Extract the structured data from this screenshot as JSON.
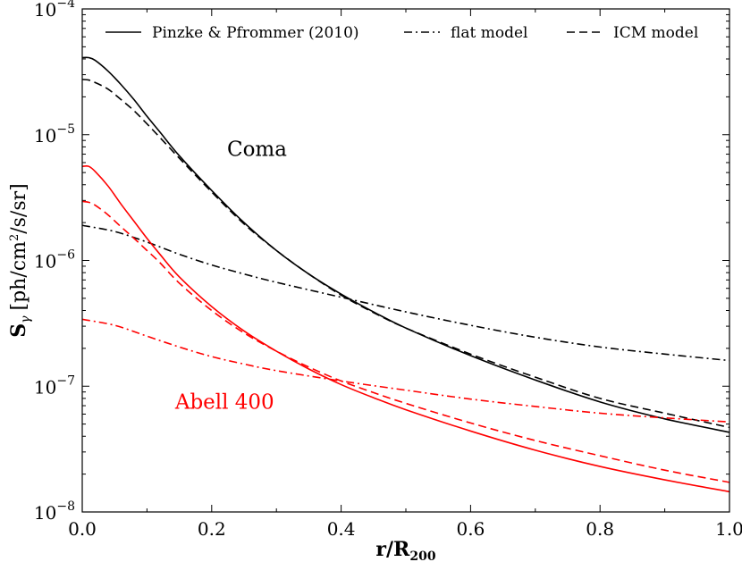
{
  "chart_data": {
    "type": "line",
    "title": "",
    "xlabel": "r/R",
    "xlabel_sub": "200",
    "ylabel": "S",
    "ylabel_sub": "γ",
    "ylabel_unit": "[ph/cm",
    "ylabel_unit_sup": "2",
    "ylabel_unit_tail": "/s/sr]",
    "xlim": [
      0.0,
      1.0
    ],
    "ylim_log10": [
      -8,
      -4
    ],
    "yscale": "log",
    "x_ticks": [
      {
        "v": 0.0,
        "label": "0.0"
      },
      {
        "v": 0.2,
        "label": "0.2"
      },
      {
        "v": 0.4,
        "label": "0.4"
      },
      {
        "v": 0.6,
        "label": "0.6"
      },
      {
        "v": 0.8,
        "label": "0.8"
      },
      {
        "v": 1.0,
        "label": "1.0"
      }
    ],
    "y_ticks": [
      {
        "e": -8,
        "base": "10",
        "exp": "−8"
      },
      {
        "e": -7,
        "base": "10",
        "exp": "−7"
      },
      {
        "e": -6,
        "base": "10",
        "exp": "−6"
      },
      {
        "e": -5,
        "base": "10",
        "exp": "−5"
      },
      {
        "e": -4,
        "base": "10",
        "exp": "−4"
      }
    ],
    "legend": {
      "position": "top",
      "entries": [
        {
          "label": "Pinzke & Pfrommer (2010)",
          "style": "solid"
        },
        {
          "label": "flat model",
          "style": "dashdot"
        },
        {
          "label": "ICM model",
          "style": "dashed"
        }
      ]
    },
    "annotations": [
      {
        "text": "Coma",
        "color": "#000000",
        "x": 0.27,
        "y": 6.8e-06
      },
      {
        "text": "Abell 400",
        "color": "#ff0000",
        "x": 0.22,
        "y": 6.6e-08
      }
    ],
    "series": [
      {
        "name": "Coma Pinzke & Pfrommer (2010)",
        "color": "#000000",
        "style": "solid",
        "x": [
          0.0,
          0.01,
          0.02,
          0.04,
          0.06,
          0.08,
          0.1,
          0.12,
          0.15,
          0.2,
          0.25,
          0.3,
          0.35,
          0.4,
          0.45,
          0.5,
          0.6,
          0.7,
          0.8,
          0.9,
          1.0
        ],
        "y": [
          4.1e-05,
          4.1e-05,
          3.9e-05,
          3.2e-05,
          2.5e-05,
          1.9e-05,
          1.4e-05,
          1.05e-05,
          6.8e-06,
          3.6e-06,
          2e-06,
          1.2e-06,
          7.8e-07,
          5.4e-07,
          3.9e-07,
          2.9e-07,
          1.75e-07,
          1.12e-07,
          7.5e-08,
          5.5e-08,
          4.3e-08
        ]
      },
      {
        "name": "Coma ICM model",
        "color": "#000000",
        "style": "dashed",
        "x": [
          0.0,
          0.01,
          0.02,
          0.04,
          0.06,
          0.08,
          0.1,
          0.12,
          0.15,
          0.2,
          0.25,
          0.3,
          0.35,
          0.4,
          0.45,
          0.5,
          0.6,
          0.7,
          0.8,
          0.9,
          1.0
        ],
        "y": [
          2.75e-05,
          2.72e-05,
          2.6e-05,
          2.3e-05,
          1.9e-05,
          1.55e-05,
          1.22e-05,
          9.5e-06,
          6.5e-06,
          3.5e-06,
          1.95e-06,
          1.2e-06,
          7.8e-07,
          5.3e-07,
          3.85e-07,
          2.9e-07,
          1.8e-07,
          1.18e-07,
          8e-08,
          6.1e-08,
          4.7e-08
        ]
      },
      {
        "name": "Coma flat model",
        "color": "#000000",
        "style": "dashdot",
        "x": [
          0.0,
          0.05,
          0.1,
          0.15,
          0.2,
          0.25,
          0.3,
          0.4,
          0.5,
          0.6,
          0.7,
          0.8,
          0.9,
          1.0
        ],
        "y": [
          1.9e-06,
          1.7e-06,
          1.4e-06,
          1.12e-06,
          9.2e-07,
          7.8e-07,
          6.7e-07,
          5.1e-07,
          3.9e-07,
          3.05e-07,
          2.45e-07,
          2.05e-07,
          1.8e-07,
          1.6e-07
        ]
      },
      {
        "name": "Abell 400 Pinzke & Pfrommer (2010)",
        "color": "#ff0000",
        "style": "solid",
        "x": [
          0.0,
          0.01,
          0.02,
          0.04,
          0.06,
          0.08,
          0.1,
          0.12,
          0.15,
          0.2,
          0.25,
          0.3,
          0.35,
          0.4,
          0.45,
          0.5,
          0.6,
          0.7,
          0.8,
          0.9,
          1.0
        ],
        "y": [
          5.6e-06,
          5.6e-06,
          5.1e-06,
          3.9e-06,
          2.8e-06,
          2.05e-06,
          1.5e-06,
          1.12e-06,
          7.4e-07,
          4.3e-07,
          2.75e-07,
          1.9e-07,
          1.37e-07,
          1.03e-07,
          8.1e-08,
          6.5e-08,
          4.4e-08,
          3.1e-08,
          2.3e-08,
          1.8e-08,
          1.45e-08
        ]
      },
      {
        "name": "Abell 400 ICM model",
        "color": "#ff0000",
        "style": "dashed",
        "x": [
          0.0,
          0.01,
          0.02,
          0.04,
          0.06,
          0.08,
          0.1,
          0.12,
          0.15,
          0.2,
          0.25,
          0.3,
          0.35,
          0.4,
          0.45,
          0.5,
          0.6,
          0.7,
          0.8,
          0.9,
          1.0
        ],
        "y": [
          2.95e-06,
          2.9e-06,
          2.75e-06,
          2.3e-06,
          1.85e-06,
          1.5e-06,
          1.2e-06,
          9.6e-07,
          6.6e-07,
          4e-07,
          2.65e-07,
          1.9e-07,
          1.42e-07,
          1.1e-07,
          8.9e-08,
          7.3e-08,
          5.1e-08,
          3.7e-08,
          2.8e-08,
          2.15e-08,
          1.72e-08
        ]
      },
      {
        "name": "Abell 400 flat model",
        "color": "#ff0000",
        "style": "dashdot",
        "x": [
          0.0,
          0.05,
          0.1,
          0.15,
          0.2,
          0.25,
          0.3,
          0.4,
          0.5,
          0.6,
          0.7,
          0.8,
          0.9,
          1.0
        ],
        "y": [
          3.4e-07,
          3.05e-07,
          2.5e-07,
          2.05e-07,
          1.72e-07,
          1.5e-07,
          1.33e-07,
          1.1e-07,
          9.3e-08,
          7.9e-08,
          6.9e-08,
          6.1e-08,
          5.6e-08,
          5.2e-08
        ]
      }
    ]
  }
}
